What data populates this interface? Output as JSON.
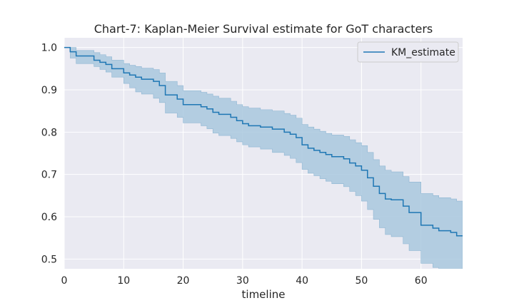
{
  "chart_data": {
    "type": "line",
    "title": "Chart-7: Kaplan-Meier Survival estimate for GoT characters",
    "xlabel": "timeline",
    "ylabel": "",
    "xlim": [
      0,
      67
    ],
    "ylim": [
      0.477,
      1.023
    ],
    "xticks": [
      0,
      10,
      20,
      30,
      40,
      50,
      60
    ],
    "yticks": [
      0.5,
      0.6,
      0.7,
      0.8,
      0.9,
      1.0
    ],
    "xtick_labels": [
      "0",
      "10",
      "20",
      "30",
      "40",
      "50",
      "60"
    ],
    "ytick_labels": [
      "0.5",
      "0.6",
      "0.7",
      "0.8",
      "0.9",
      "1.0"
    ],
    "grid": true,
    "legend_position": "top-right",
    "colors": {
      "line": "#1f77b4",
      "band": "#a9c8de",
      "background": "#eaeaf2",
      "grid": "#ffffff"
    },
    "series": [
      {
        "name": "KM_estimate",
        "step": "post",
        "x": [
          0,
          1,
          2,
          5,
          6,
          7,
          8,
          10,
          11,
          12,
          13,
          15,
          16,
          17,
          19,
          20,
          23,
          24,
          25,
          26,
          28,
          29,
          30,
          31,
          33,
          35,
          37,
          38,
          39,
          40,
          41,
          42,
          43,
          44,
          45,
          47,
          48,
          49,
          50,
          51,
          52,
          53,
          54,
          55,
          57,
          58,
          60,
          62,
          63,
          65,
          66,
          67
        ],
        "y": [
          1.0,
          0.99,
          0.98,
          0.97,
          0.965,
          0.96,
          0.95,
          0.94,
          0.935,
          0.93,
          0.925,
          0.92,
          0.91,
          0.888,
          0.878,
          0.865,
          0.86,
          0.855,
          0.847,
          0.842,
          0.835,
          0.827,
          0.82,
          0.815,
          0.812,
          0.807,
          0.8,
          0.795,
          0.787,
          0.77,
          0.762,
          0.757,
          0.752,
          0.747,
          0.742,
          0.737,
          0.727,
          0.72,
          0.71,
          0.692,
          0.672,
          0.655,
          0.642,
          0.64,
          0.625,
          0.61,
          0.58,
          0.573,
          0.567,
          0.563,
          0.555,
          0.555
        ],
        "ci_lower": [
          1.0,
          0.975,
          0.962,
          0.955,
          0.948,
          0.942,
          0.93,
          0.915,
          0.905,
          0.895,
          0.89,
          0.88,
          0.87,
          0.845,
          0.835,
          0.822,
          0.815,
          0.808,
          0.798,
          0.792,
          0.785,
          0.777,
          0.77,
          0.765,
          0.76,
          0.752,
          0.745,
          0.738,
          0.728,
          0.712,
          0.703,
          0.697,
          0.69,
          0.684,
          0.678,
          0.671,
          0.66,
          0.65,
          0.637,
          0.617,
          0.594,
          0.574,
          0.558,
          0.553,
          0.536,
          0.52,
          0.49,
          0.48,
          0.474,
          0.468,
          0.46,
          0.46
        ],
        "ci_upper": [
          1.0,
          1.0,
          0.993,
          0.988,
          0.983,
          0.978,
          0.97,
          0.962,
          0.958,
          0.955,
          0.951,
          0.948,
          0.94,
          0.92,
          0.91,
          0.898,
          0.894,
          0.89,
          0.885,
          0.88,
          0.873,
          0.865,
          0.86,
          0.857,
          0.853,
          0.85,
          0.844,
          0.84,
          0.833,
          0.818,
          0.812,
          0.807,
          0.802,
          0.797,
          0.793,
          0.79,
          0.782,
          0.775,
          0.768,
          0.752,
          0.735,
          0.72,
          0.71,
          0.706,
          0.695,
          0.682,
          0.655,
          0.65,
          0.645,
          0.642,
          0.637,
          0.637
        ]
      }
    ]
  }
}
